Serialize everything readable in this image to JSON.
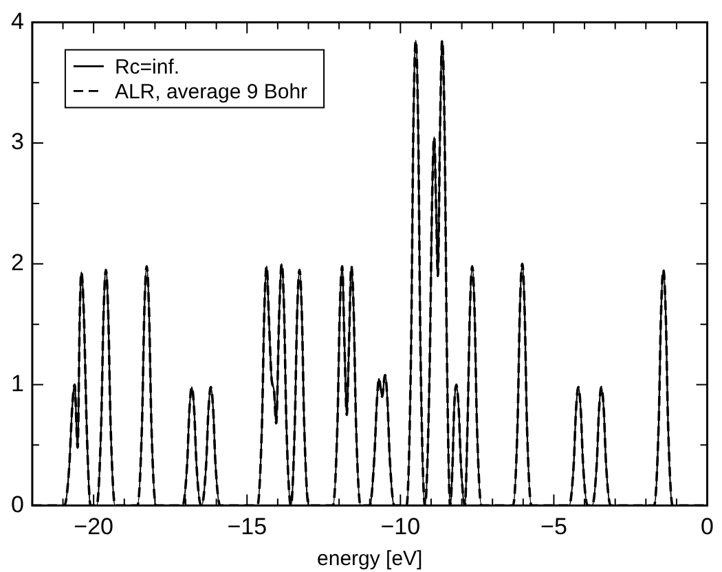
{
  "chart_data": {
    "type": "line",
    "xlabel": "energy [eV]",
    "xlim": [
      -22,
      0
    ],
    "xticks": [
      {
        "value": -22,
        "label": null
      },
      {
        "value": -21,
        "label": null
      },
      {
        "value": -20,
        "label": "−20"
      },
      {
        "value": -19,
        "label": null
      },
      {
        "value": -18,
        "label": null
      },
      {
        "value": -17,
        "label": null
      },
      {
        "value": -16,
        "label": null
      },
      {
        "value": -15,
        "label": "−15"
      },
      {
        "value": -14,
        "label": null
      },
      {
        "value": -13,
        "label": null
      },
      {
        "value": -12,
        "label": null
      },
      {
        "value": -11,
        "label": null
      },
      {
        "value": -10,
        "label": "−10"
      },
      {
        "value": -9,
        "label": null
      },
      {
        "value": -8,
        "label": null
      },
      {
        "value": -7,
        "label": null
      },
      {
        "value": -6,
        "label": null
      },
      {
        "value": -5,
        "label": "−5"
      },
      {
        "value": -4,
        "label": null
      },
      {
        "value": -3,
        "label": null
      },
      {
        "value": -2,
        "label": null
      },
      {
        "value": -1,
        "label": null
      },
      0
    ],
    "ylim": [
      0,
      4
    ],
    "yticks": [
      0,
      {
        "value": 0.5,
        "label": null
      },
      1,
      {
        "value": 1.5,
        "label": null
      },
      2,
      {
        "value": 2.5,
        "label": null
      },
      3,
      {
        "value": 3.5,
        "label": null
      },
      4
    ],
    "grid": false,
    "legend": "top left",
    "marker": "none",
    "series": [
      {
        "name": "Rc=inf.",
        "color": "#000000",
        "line_style": "solid",
        "x": [
          -22,
          -20.95,
          -20.8,
          -20.7,
          -20.62,
          -20.52,
          -20.45,
          -20.4,
          -20.32,
          -20.22,
          -20.1,
          -19.9,
          -19.75,
          -19.68,
          -19.6,
          -19.52,
          -19.45,
          -19.3,
          -18.57,
          -18.42,
          -18.35,
          -18.27,
          -18.19,
          -18.12,
          -17.97,
          -17.1,
          -16.95,
          -16.88,
          -16.8,
          -16.72,
          -16.65,
          -16.5,
          -16.48,
          -16.33,
          -16.26,
          -16.18,
          -16.1,
          -16.03,
          -15.88,
          -14.66,
          -14.51,
          -14.44,
          -14.36,
          -14.28,
          -14.2,
          -14.12,
          -14.05,
          -13.95,
          -13.87,
          -13.79,
          -13.72,
          -13.57,
          -13.44,
          -13.37,
          -13.29,
          -13.21,
          -13.14,
          -12.99,
          -12.2,
          -12.05,
          -11.98,
          -11.9,
          -11.82,
          -11.75,
          -11.68,
          -11.6,
          -11.52,
          -11.45,
          -11.3,
          -11.0,
          -10.85,
          -10.77,
          -10.7,
          -10.6,
          -10.5,
          -10.42,
          -10.35,
          -10.2,
          -9.8,
          -9.65,
          -9.58,
          -9.5,
          -9.42,
          -9.35,
          -9.2,
          -9.05,
          -8.97,
          -8.9,
          -8.84,
          -8.78,
          -8.71,
          -8.64,
          -8.56,
          -8.49,
          -8.38,
          -8.3,
          -8.25,
          -8.18,
          -8.1,
          -8.03,
          -7.9,
          -7.81,
          -7.74,
          -7.66,
          -7.58,
          -7.51,
          -7.36,
          -6.33,
          -6.18,
          -6.11,
          -6.03,
          -5.95,
          -5.88,
          -5.73,
          -4.5,
          -4.35,
          -4.28,
          -4.2,
          -4.12,
          -4.05,
          -3.9,
          -3.75,
          -3.6,
          -3.53,
          -3.45,
          -3.37,
          -3.3,
          -3.15,
          -1.73,
          -1.58,
          -1.51,
          -1.43,
          -1.35,
          -1.28,
          -1.13,
          0
        ],
        "values": [
          0,
          0,
          0.3,
          0.8,
          1.0,
          0.48,
          1.6,
          1.93,
          1.6,
          0.6,
          0,
          0,
          0.7,
          1.55,
          1.95,
          1.55,
          0.7,
          0,
          0,
          0.7,
          1.58,
          1.98,
          1.58,
          0.7,
          0,
          0,
          0.35,
          0.78,
          0.98,
          0.78,
          0.35,
          0,
          0,
          0.35,
          0.78,
          0.98,
          0.78,
          0.35,
          0,
          0,
          0.7,
          1.58,
          1.98,
          1.5,
          1.05,
          0.95,
          0.68,
          1.6,
          2.0,
          1.6,
          0.7,
          0,
          0.7,
          1.56,
          1.95,
          1.56,
          0.7,
          0,
          0,
          0.7,
          1.58,
          1.98,
          1.3,
          0.75,
          1.3,
          1.98,
          1.58,
          0.7,
          0,
          0,
          0.4,
          0.85,
          1.05,
          0.9,
          1.08,
          0.85,
          0.4,
          0,
          0,
          1.35,
          3.1,
          3.85,
          3.1,
          1.35,
          0,
          1.1,
          2.5,
          3.05,
          2.5,
          1.9,
          3.1,
          3.85,
          3.1,
          1.35,
          0,
          0.35,
          0.8,
          1.0,
          0.8,
          0.35,
          0,
          0.7,
          1.58,
          1.98,
          1.58,
          0.7,
          0,
          0,
          0.7,
          1.6,
          2.0,
          1.6,
          0.7,
          0,
          0,
          0.35,
          0.78,
          0.98,
          0.78,
          0.35,
          0,
          0,
          0.35,
          0.78,
          0.98,
          0.78,
          0.35,
          0,
          0,
          0.7,
          1.56,
          1.95,
          1.56,
          0.7,
          0,
          0
        ]
      },
      {
        "name": "ALR, average 9 Bohr",
        "color": "#000000",
        "line_style": "dashed",
        "x": [
          -22,
          -20.95,
          -20.8,
          -20.7,
          -20.62,
          -20.52,
          -20.45,
          -20.4,
          -20.32,
          -20.22,
          -20.1,
          -19.9,
          -19.75,
          -19.68,
          -19.6,
          -19.52,
          -19.45,
          -19.3,
          -18.57,
          -18.42,
          -18.35,
          -18.27,
          -18.19,
          -18.12,
          -17.97,
          -17.1,
          -16.95,
          -16.88,
          -16.8,
          -16.72,
          -16.65,
          -16.5,
          -16.48,
          -16.33,
          -16.26,
          -16.18,
          -16.1,
          -16.03,
          -15.88,
          -14.66,
          -14.51,
          -14.44,
          -14.36,
          -14.28,
          -14.2,
          -14.12,
          -14.05,
          -13.95,
          -13.87,
          -13.79,
          -13.72,
          -13.57,
          -13.44,
          -13.37,
          -13.29,
          -13.21,
          -13.14,
          -12.99,
          -12.2,
          -12.05,
          -11.98,
          -11.9,
          -11.82,
          -11.75,
          -11.68,
          -11.6,
          -11.52,
          -11.45,
          -11.3,
          -11.0,
          -10.85,
          -10.77,
          -10.7,
          -10.6,
          -10.5,
          -10.42,
          -10.35,
          -10.2,
          -9.8,
          -9.65,
          -9.58,
          -9.5,
          -9.42,
          -9.35,
          -9.2,
          -9.05,
          -8.97,
          -8.9,
          -8.84,
          -8.78,
          -8.71,
          -8.64,
          -8.56,
          -8.49,
          -8.38,
          -8.3,
          -8.25,
          -8.18,
          -8.1,
          -8.03,
          -7.9,
          -7.81,
          -7.74,
          -7.66,
          -7.58,
          -7.51,
          -7.36,
          -6.33,
          -6.18,
          -6.11,
          -6.03,
          -5.95,
          -5.88,
          -5.73,
          -4.5,
          -4.35,
          -4.28,
          -4.2,
          -4.12,
          -4.05,
          -3.9,
          -3.75,
          -3.6,
          -3.53,
          -3.45,
          -3.37,
          -3.3,
          -3.15,
          -1.73,
          -1.58,
          -1.51,
          -1.43,
          -1.35,
          -1.28,
          -1.13,
          0
        ],
        "values": [
          0,
          0,
          0.3,
          0.8,
          1.0,
          0.48,
          1.6,
          1.93,
          1.6,
          0.6,
          0,
          0,
          0.7,
          1.55,
          1.95,
          1.55,
          0.7,
          0,
          0,
          0.7,
          1.58,
          1.98,
          1.58,
          0.7,
          0,
          0,
          0.35,
          0.78,
          0.98,
          0.78,
          0.35,
          0,
          0,
          0.35,
          0.78,
          0.98,
          0.78,
          0.35,
          0,
          0,
          0.7,
          1.58,
          1.98,
          1.5,
          1.05,
          0.95,
          0.68,
          1.6,
          2.0,
          1.6,
          0.7,
          0,
          0.7,
          1.56,
          1.95,
          1.56,
          0.7,
          0,
          0,
          0.7,
          1.58,
          1.98,
          1.3,
          0.75,
          1.3,
          1.98,
          1.58,
          0.7,
          0,
          0,
          0.4,
          0.85,
          1.05,
          0.9,
          1.08,
          0.85,
          0.4,
          0,
          0,
          1.35,
          3.1,
          3.85,
          3.1,
          1.35,
          0,
          1.1,
          2.5,
          3.05,
          2.5,
          1.9,
          3.1,
          3.85,
          3.1,
          1.35,
          0,
          0.35,
          0.8,
          1.0,
          0.8,
          0.35,
          0,
          0.7,
          1.58,
          1.98,
          1.58,
          0.7,
          0,
          0,
          0.7,
          1.6,
          2.0,
          1.6,
          0.7,
          0,
          0,
          0.35,
          0.78,
          0.98,
          0.78,
          0.35,
          0,
          0,
          0.35,
          0.78,
          0.98,
          0.78,
          0.35,
          0,
          0,
          0.7,
          1.56,
          1.95,
          1.56,
          0.7,
          0,
          0
        ]
      }
    ]
  }
}
